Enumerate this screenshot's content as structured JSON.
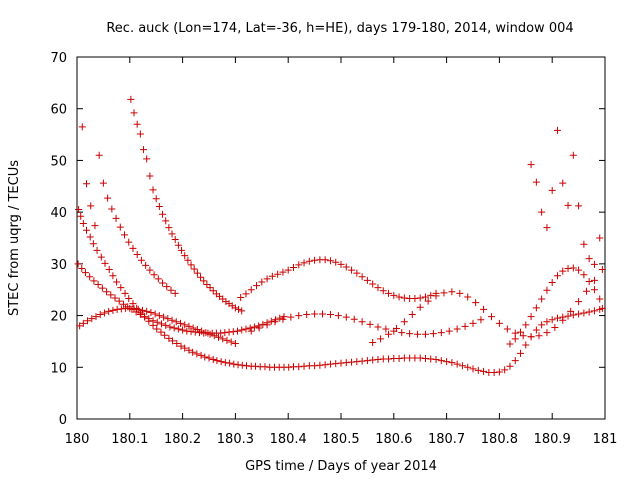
{
  "chart_data": {
    "type": "scatter",
    "title": "Rec. auck (Lon=174, Lat=-36, h=HE), days 179-180, 2014, window 004",
    "xlabel": "GPS time / Days of year 2014",
    "ylabel": "STEC from uqrg / TECUs",
    "xlim": [
      180,
      181
    ],
    "ylim": [
      0,
      70
    ],
    "xticks": [
      "180",
      "180.1",
      "180.2",
      "180.3",
      "180.4",
      "180.5",
      "180.6",
      "180.7",
      "180.8",
      "180.9",
      "181"
    ],
    "yticks": [
      "0",
      "10",
      "20",
      "30",
      "40",
      "50",
      "60",
      "70"
    ],
    "marker": "plus",
    "color": "#cc0000",
    "grid": false,
    "series": [
      {
        "x": [
          180.003,
          180.007,
          180.012,
          180.018,
          180.025,
          180.031,
          180.038,
          180.046,
          180.053,
          180.061,
          180.068,
          180.075,
          180.083,
          180.091,
          180.098,
          180.106,
          180.113,
          180.121,
          180.128,
          180.136,
          180.144,
          180.151,
          180.159,
          180.166,
          180.174,
          180.181,
          180.189,
          180.197,
          180.204,
          180.212,
          180.219,
          180.227,
          180.235,
          180.242,
          180.25,
          180.258,
          180.265,
          180.273,
          180.281,
          180.289,
          180.297,
          180.305,
          180.313,
          180.321,
          180.33,
          180.338,
          180.347,
          180.356,
          180.365,
          180.374,
          180.383,
          180.392,
          180.401,
          180.41,
          180.42,
          180.43,
          180.44,
          180.45,
          180.46,
          180.47,
          180.48,
          180.49,
          180.5,
          180.51,
          180.52,
          180.53,
          180.54,
          180.55,
          180.56,
          180.57,
          180.58,
          180.59,
          180.6,
          180.61,
          180.62,
          180.63,
          180.64,
          180.65,
          180.66,
          180.67,
          180.68,
          180.69,
          180.7,
          180.71,
          180.72,
          180.73,
          180.74,
          180.75,
          180.76,
          180.77,
          180.78,
          180.79,
          180.8,
          180.81,
          180.82,
          180.83,
          180.84,
          180.85,
          180.86,
          180.87,
          180.88,
          180.89,
          180.9,
          180.91,
          180.92,
          180.93,
          180.94,
          180.95,
          180.96,
          180.97,
          180.98,
          180.99,
          180.995
        ],
        "y": [
          40.5,
          39.2,
          37.8,
          36.5,
          35.2,
          33.9,
          32.6,
          31.3,
          30.1,
          28.9,
          27.7,
          26.5,
          25.4,
          24.3,
          23.3,
          22.3,
          21.4,
          20.5,
          19.7,
          18.9,
          18.1,
          17.4,
          16.8,
          16.2,
          15.6,
          15.1,
          14.6,
          14.1,
          13.7,
          13.3,
          12.9,
          12.6,
          12.3,
          12.0,
          11.8,
          11.5,
          11.3,
          11.1,
          10.9,
          10.8,
          10.6,
          10.5,
          10.4,
          10.3,
          10.2,
          10.2,
          10.1,
          10.1,
          10.0,
          10.0,
          10.0,
          10.0,
          10.0,
          10.1,
          10.1,
          10.2,
          10.3,
          10.3,
          10.4,
          10.5,
          10.6,
          10.7,
          10.8,
          10.9,
          11.0,
          11.1,
          11.2,
          11.3,
          11.4,
          11.5,
          11.6,
          11.6,
          11.7,
          11.7,
          11.8,
          11.8,
          11.8,
          11.8,
          11.7,
          11.6,
          11.5,
          11.3,
          11.1,
          10.9,
          10.6,
          10.3,
          10.0,
          9.7,
          9.4,
          9.2,
          9.0,
          9.0,
          9.1,
          9.5,
          10.2,
          11.3,
          12.7,
          14.3,
          15.9,
          17.2,
          18.2,
          18.8,
          19.2,
          19.5,
          19.7,
          19.9,
          20.1,
          20.3,
          20.5,
          20.7,
          20.9,
          21.2,
          21.4
        ]
      },
      {
        "x": [
          180.002,
          180.009,
          180.016,
          180.024,
          180.032,
          180.04,
          180.048,
          180.056,
          180.064,
          180.072,
          180.08,
          180.088,
          180.096,
          180.104,
          180.112,
          180.12,
          180.128,
          180.136,
          180.144,
          180.152,
          180.16,
          180.168,
          180.176,
          180.184,
          180.192,
          180.2,
          180.208,
          180.216,
          180.224,
          180.232,
          180.24,
          180.248,
          180.256,
          180.264,
          180.272,
          180.28,
          180.288,
          180.296,
          180.304,
          180.312,
          180.32,
          180.328,
          180.336,
          180.344,
          180.352,
          180.36,
          180.368,
          180.376,
          180.384,
          180.392
        ],
        "y": [
          30.0,
          29.1,
          28.3,
          27.5,
          26.7,
          26.0,
          25.3,
          24.6,
          24.0,
          23.4,
          22.8,
          22.2,
          21.7,
          21.2,
          20.7,
          20.2,
          19.8,
          19.4,
          19.0,
          18.7,
          18.4,
          18.1,
          17.8,
          17.6,
          17.4,
          17.2,
          17.0,
          16.9,
          16.8,
          16.7,
          16.6,
          16.6,
          16.6,
          16.6,
          16.6,
          16.7,
          16.8,
          16.9,
          17.0,
          17.2,
          17.4,
          17.6,
          17.8,
          18.0,
          18.3,
          18.6,
          18.9,
          19.2,
          19.5,
          19.8
        ]
      },
      {
        "x": [
          180.005,
          180.012,
          180.02,
          180.028,
          180.036,
          180.044,
          180.052,
          180.06,
          180.068,
          180.076,
          180.084,
          180.092,
          180.1,
          180.108,
          180.116,
          180.124,
          180.132,
          180.14,
          180.148,
          180.156,
          180.164,
          180.172,
          180.18,
          180.188,
          180.196,
          180.204,
          180.212,
          180.22,
          180.228,
          180.236,
          180.244,
          180.252,
          180.26,
          180.268,
          180.276,
          180.284,
          180.292,
          180.3
        ],
        "y": [
          18.0,
          18.5,
          19.0,
          19.4,
          19.8,
          20.2,
          20.5,
          20.8,
          21.0,
          21.2,
          21.3,
          21.4,
          21.4,
          21.3,
          21.2,
          21.0,
          20.8,
          20.6,
          20.3,
          20.0,
          19.7,
          19.4,
          19.1,
          18.8,
          18.5,
          18.2,
          17.9,
          17.6,
          17.3,
          17.0,
          16.7,
          16.4,
          16.1,
          15.8,
          15.5,
          15.2,
          14.9,
          14.6
        ]
      },
      {
        "x": [
          180.102,
          180.108,
          180.114,
          180.12,
          180.126,
          180.132,
          180.138,
          180.144,
          180.15,
          180.156,
          180.162,
          180.168,
          180.174,
          180.18,
          180.186,
          180.192,
          180.198,
          180.204,
          180.21,
          180.216,
          180.222,
          180.228,
          180.234,
          180.24,
          180.246,
          180.252,
          180.258,
          180.264,
          180.27,
          180.276,
          180.282,
          180.288,
          180.294,
          180.3,
          180.306,
          180.312
        ],
        "y": [
          61.8,
          59.2,
          57.0,
          55.1,
          52.1,
          50.3,
          47.0,
          44.3,
          42.6,
          41.1,
          39.6,
          38.3,
          37.0,
          35.8,
          34.7,
          33.6,
          32.6,
          31.6,
          30.7,
          29.8,
          29.0,
          28.2,
          27.4,
          26.7,
          26.0,
          25.4,
          24.8,
          24.2,
          23.7,
          23.2,
          22.7,
          22.3,
          21.9,
          21.5,
          21.2,
          20.9
        ]
      },
      {
        "x": [
          180.01,
          180.018,
          180.026,
          180.034,
          180.042,
          180.05,
          180.058,
          180.066,
          180.074,
          180.082,
          180.09,
          180.098,
          180.106,
          180.114,
          180.122,
          180.13,
          180.138,
          180.146,
          180.154,
          180.162,
          180.17,
          180.178,
          180.186
        ],
        "y": [
          56.5,
          45.5,
          41.2,
          37.4,
          51.0,
          45.6,
          42.7,
          40.6,
          38.8,
          37.1,
          35.6,
          34.2,
          33.0,
          31.8,
          30.7,
          29.7,
          28.8,
          27.9,
          27.1,
          26.3,
          25.6,
          24.9,
          24.3
        ]
      },
      {
        "x": [
          180.31,
          180.32,
          180.33,
          180.34,
          180.35,
          180.36,
          180.37,
          180.38,
          180.39,
          180.4,
          180.41,
          180.42,
          180.43,
          180.44,
          180.45,
          180.46,
          180.47,
          180.48,
          180.49,
          180.5,
          180.51,
          180.52,
          180.53,
          180.54,
          180.55,
          180.56,
          180.57,
          180.58,
          180.59,
          180.6,
          180.61,
          180.62,
          180.63,
          180.64,
          180.65,
          180.66,
          180.67,
          180.68
        ],
        "y": [
          23.5,
          24.2,
          25.0,
          25.8,
          26.5,
          27.1,
          27.6,
          28.0,
          28.4,
          28.8,
          29.3,
          29.8,
          30.2,
          30.5,
          30.7,
          30.8,
          30.8,
          30.6,
          30.3,
          29.9,
          29.4,
          28.8,
          28.2,
          27.5,
          26.8,
          26.1,
          25.4,
          24.8,
          24.3,
          23.9,
          23.6,
          23.4,
          23.3,
          23.3,
          23.4,
          23.6,
          23.9,
          24.3
        ]
      },
      {
        "x": [
          180.33,
          180.345,
          180.36,
          180.375,
          180.39,
          180.405,
          180.42,
          180.435,
          180.45,
          180.465,
          180.48,
          180.495,
          180.51,
          180.525,
          180.54,
          180.555,
          180.57,
          180.585,
          180.6,
          180.615,
          180.63,
          180.645,
          180.66,
          180.675,
          180.69,
          180.705,
          180.72,
          180.735,
          180.75,
          180.765
        ],
        "y": [
          17.0,
          17.6,
          18.2,
          18.8,
          19.3,
          19.7,
          20.0,
          20.2,
          20.3,
          20.3,
          20.2,
          20.0,
          19.7,
          19.3,
          18.8,
          18.3,
          17.8,
          17.4,
          17.0,
          16.7,
          16.5,
          16.4,
          16.4,
          16.5,
          16.7,
          17.0,
          17.4,
          17.9,
          18.5,
          19.2
        ]
      },
      {
        "x": [
          180.56,
          180.575,
          180.59,
          180.605,
          180.62,
          180.635,
          180.65,
          180.665,
          180.68,
          180.695,
          180.71,
          180.725,
          180.74,
          180.755,
          180.77,
          180.785,
          180.8,
          180.815,
          180.83,
          180.845,
          180.86,
          180.875,
          180.89,
          180.905,
          180.92,
          180.935,
          180.95,
          180.965,
          180.98,
          180.995
        ],
        "y": [
          14.8,
          15.5,
          16.4,
          17.5,
          18.8,
          20.2,
          21.6,
          22.8,
          23.8,
          24.4,
          24.6,
          24.3,
          23.6,
          22.5,
          21.2,
          19.8,
          18.5,
          17.4,
          16.6,
          16.1,
          15.9,
          16.1,
          16.7,
          17.7,
          19.1,
          20.8,
          22.7,
          24.7,
          26.8,
          28.9
        ]
      },
      {
        "x": [
          180.86,
          180.87,
          180.88,
          180.89,
          180.9,
          180.91,
          180.92,
          180.93,
          180.94,
          180.95,
          180.96,
          180.97,
          180.98,
          180.99
        ],
        "y": [
          49.2,
          45.8,
          40.0,
          37.0,
          44.2,
          55.8,
          45.6,
          41.3,
          51.0,
          41.2,
          33.8,
          31.0,
          29.9,
          35.0
        ]
      },
      {
        "x": [
          180.82,
          180.83,
          180.84,
          180.85,
          180.86,
          180.87,
          180.88,
          180.89,
          180.9,
          180.91,
          180.92,
          180.93,
          180.94,
          180.95,
          180.96,
          180.97,
          180.98,
          180.99
        ],
        "y": [
          14.5,
          15.5,
          16.8,
          18.2,
          19.8,
          21.5,
          23.2,
          24.9,
          26.4,
          27.7,
          28.6,
          29.1,
          29.2,
          28.8,
          27.9,
          26.6,
          25.0,
          23.2
        ]
      }
    ]
  }
}
